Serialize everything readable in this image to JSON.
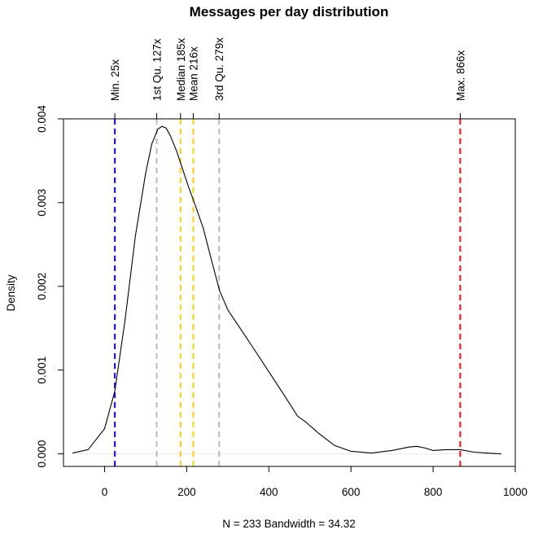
{
  "chart_data": {
    "type": "line",
    "title": "Messages per day distribution",
    "xlabel": "N = 233   Bandwidth = 34.32",
    "ylabel": "Density",
    "xlim": [
      -100,
      1000
    ],
    "ylim": [
      -0.00015,
      0.004
    ],
    "x_ticks": [
      0,
      200,
      400,
      600,
      800,
      1000
    ],
    "x_tick_labels": [
      "0",
      "200",
      "400",
      "600",
      "800",
      "1000"
    ],
    "y_ticks": [
      0.0,
      0.001,
      0.002,
      0.003,
      0.004
    ],
    "y_tick_labels": [
      "0.000",
      "0.001",
      "0.002",
      "0.003",
      "0.004"
    ],
    "grid": false,
    "series": [
      {
        "color": "#000000",
        "x": [
          -78,
          -40,
          0,
          25,
          50,
          75,
          100,
          115,
          130,
          140,
          150,
          160,
          175,
          190,
          205,
          220,
          240,
          260,
          280,
          300,
          330,
          360,
          400,
          440,
          470,
          490,
          520,
          560,
          600,
          650,
          700,
          740,
          760,
          780,
          800,
          830,
          866,
          900,
          930,
          966
        ],
        "y": [
          1e-05,
          5e-05,
          0.0003,
          0.00075,
          0.0016,
          0.0026,
          0.00335,
          0.0037,
          0.00388,
          0.00391,
          0.00389,
          0.0038,
          0.00362,
          0.0034,
          0.00318,
          0.00298,
          0.0027,
          0.00232,
          0.00195,
          0.00172,
          0.0015,
          0.00128,
          0.00098,
          0.00068,
          0.00045,
          0.00038,
          0.00025,
          0.0001,
          3e-05,
          1e-05,
          4e-05,
          8e-05,
          9e-05,
          7e-05,
          4e-05,
          5e-05,
          5e-05,
          2e-05,
          1e-05,
          0.0
        ]
      }
    ],
    "zero_line_color": "#e8e8e8",
    "vlines": [
      {
        "x": 25,
        "label": "Min. 25x",
        "color": "#1a1aff"
      },
      {
        "x": 127,
        "label": "1st Qu. 127x",
        "color": "#bebebe"
      },
      {
        "x": 185,
        "label": "Median 185x",
        "color": "#ffd21a"
      },
      {
        "x": 216,
        "label": "Mean 216x",
        "color": "#ffd21a"
      },
      {
        "x": 279,
        "label": "3rd Qu. 279x",
        "color": "#bebebe"
      },
      {
        "x": 866,
        "label": "Max. 866x",
        "color": "#ff1a1a"
      }
    ]
  }
}
